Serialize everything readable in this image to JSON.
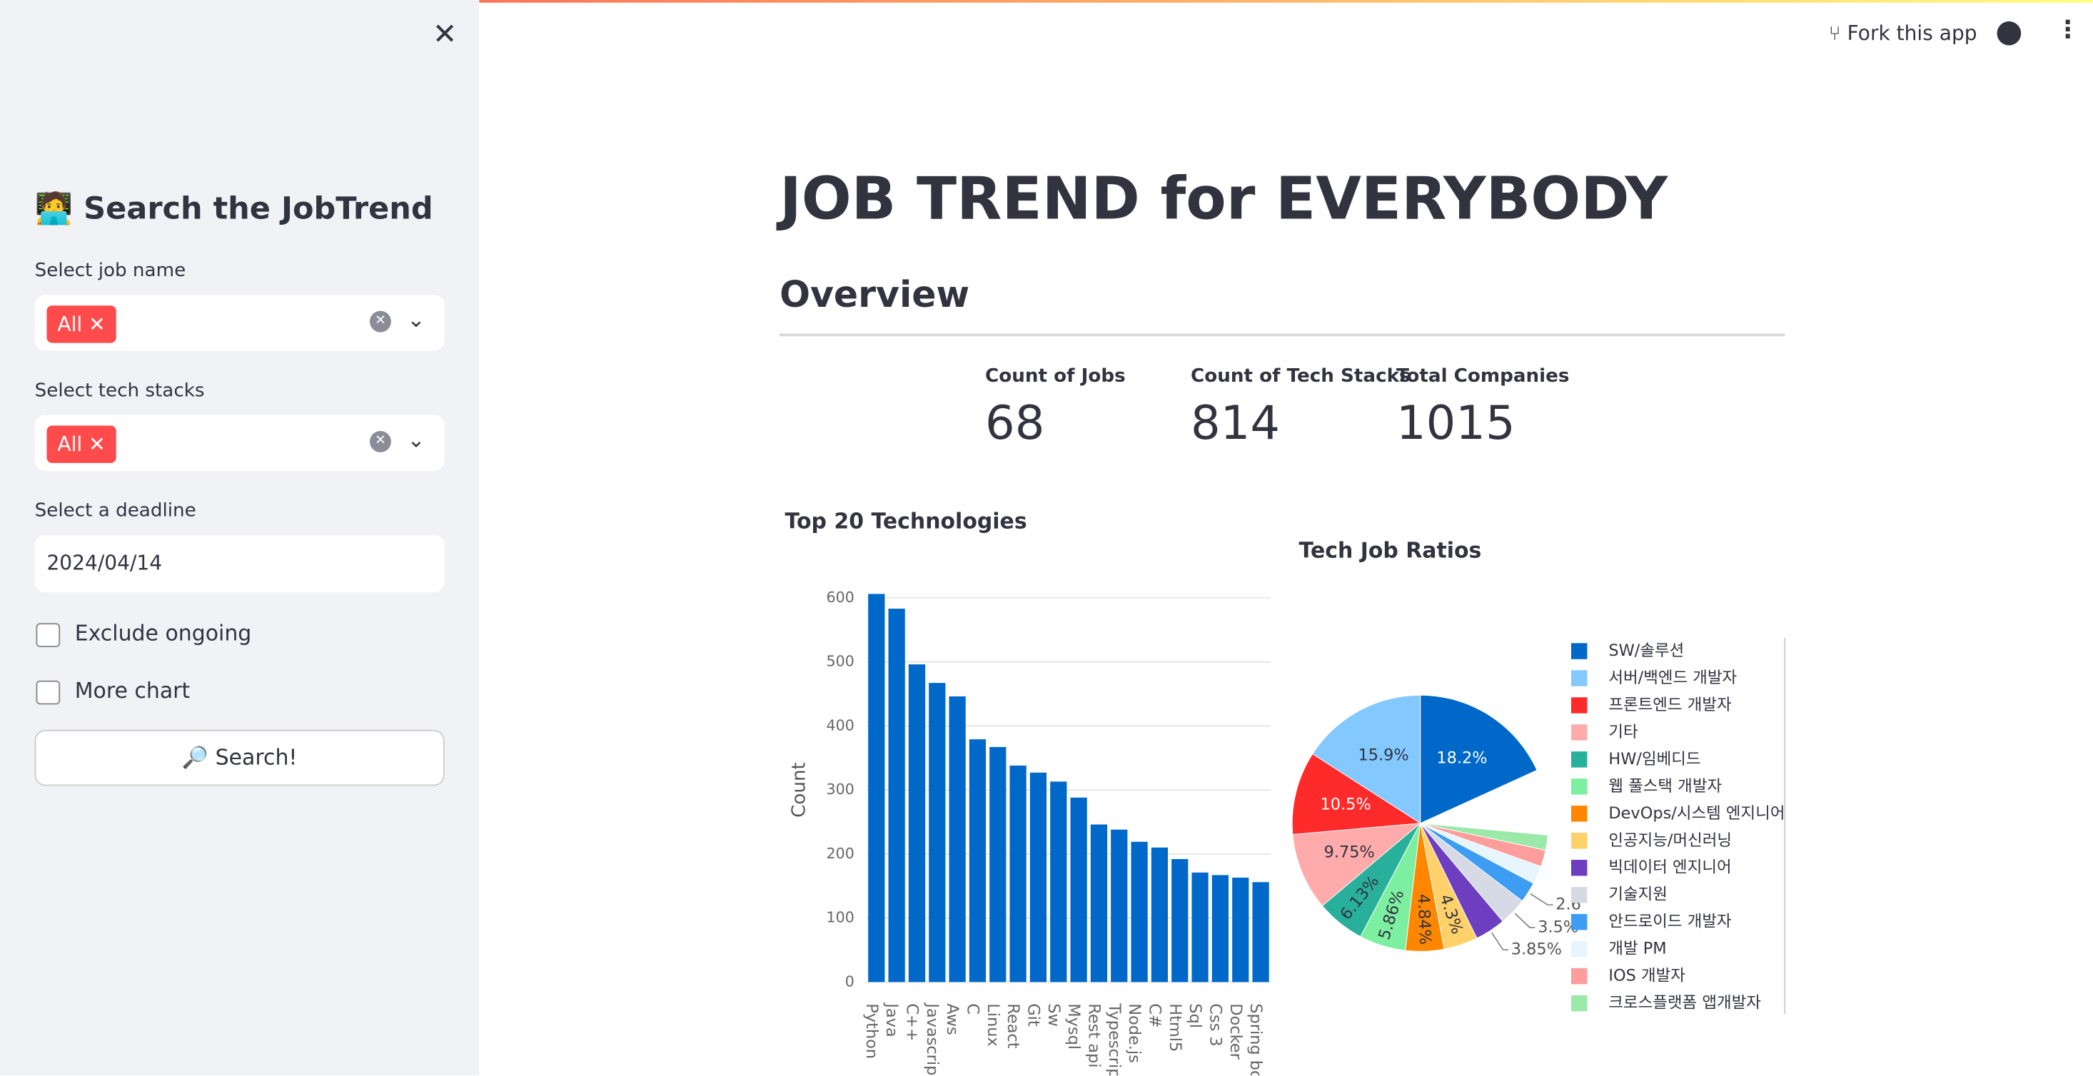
{
  "header": {
    "fork_button": "Fork this app"
  },
  "sidebar": {
    "title": "🧑‍💻 Search the JobTrend",
    "job_name": {
      "label": "Select job name",
      "tag": "All"
    },
    "tech_stacks": {
      "label": "Select tech stacks",
      "tag": "All"
    },
    "deadline": {
      "label": "Select a deadline",
      "value": "2024/04/14"
    },
    "checkboxes": [
      "Exclude ongoing",
      "More chart"
    ],
    "button": "🔎 Search!"
  },
  "main": {
    "title": "JOB TREND for EVERYBODY",
    "section": "Overview",
    "metrics": [
      {
        "label": "Count of Jobs",
        "value": 68
      },
      {
        "label": "Count of Tech Stacks",
        "value": 814
      },
      {
        "label": "Total Companies",
        "value": 1015
      }
    ]
  },
  "chart_data": [
    {
      "type": "bar",
      "title": "Top 20 Technologies",
      "y_label": "Count",
      "categories": [
        "Python",
        "Java",
        "C++",
        "Javascript",
        "Aws",
        "C",
        "Linux",
        "React",
        "Git",
        "Sw",
        "Mysql",
        "Rest api",
        "Typescript",
        "Node.js",
        "C#",
        "Html5",
        "Sql",
        "Css 3",
        "Docker",
        "Spring boot"
      ],
      "values": [
        606,
        583,
        496,
        467,
        446,
        379,
        367,
        338,
        327,
        313,
        288,
        246,
        238,
        219,
        210,
        192,
        171,
        167,
        163,
        156
      ],
      "color": "#0068c9",
      "ylim": [
        0,
        630
      ],
      "yticks": [
        0,
        100,
        200,
        300,
        400,
        500,
        600
      ],
      "grid": true
    },
    {
      "type": "pie",
      "title": "Tech Job Ratios",
      "categories": [
        "SW/솔루션",
        "서버/백엔드 개발자",
        "프론트엔드 개발자",
        "기타",
        "HW/임베디드",
        "웹 풀스택 개발자",
        "DevOps/시스템 엔지니어",
        "인공지능/머신러닝",
        "빅데이터 엔지니어",
        "기술지원",
        "안드로이드 개발자",
        "개발 PM",
        "IOS 개발자",
        "크로스플랫폼 앱개발자"
      ],
      "values": [
        18.2,
        15.9,
        10.5,
        9.75,
        6.13,
        5.86,
        4.84,
        4.3,
        3.85,
        3.5,
        2.6,
        2.3,
        2.1,
        1.9
      ],
      "value_labels": [
        "18.2%",
        "15.9%",
        "10.5%",
        "9.75%",
        "6.13%",
        "5.86%",
        "4.84%",
        "4.3%",
        "3.85%",
        "3.5%",
        "2.6",
        null,
        null,
        null
      ],
      "colors": [
        "#0068c9",
        "#83c9ff",
        "#ff2b2b",
        "#ffabab",
        "#29b09d",
        "#7defa1",
        "#ff8700",
        "#ffd16a",
        "#6d3fc0",
        "#d5dae5",
        "#3d9df3",
        "#e7f5ff",
        "#ff9c9c",
        "#9be9a8"
      ]
    }
  ]
}
